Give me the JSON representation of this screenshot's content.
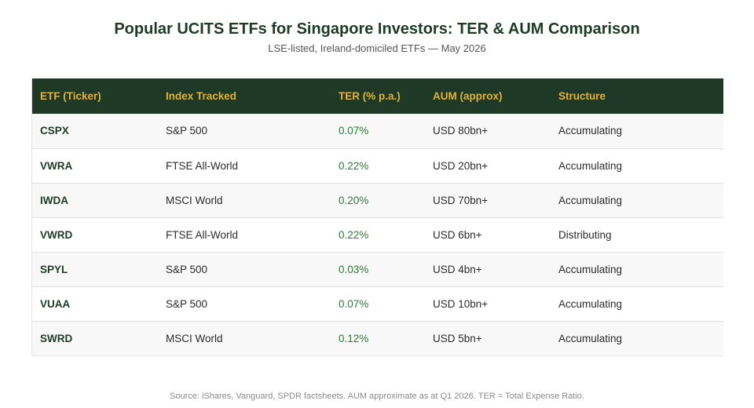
{
  "chart_data": {
    "type": "table",
    "title": "Popular UCITS ETFs for Singapore Investors: TER & AUM Comparison",
    "subtitle": "LSE-listed, Ireland-domiciled ETFs — May 2026",
    "columns": [
      "ETF (Ticker)",
      "Index Tracked",
      "TER (% p.a.)",
      "AUM (approx)",
      "Structure"
    ],
    "rows": [
      {
        "ticker": "CSPX",
        "index": "S&P 500",
        "ter": "0.07%",
        "aum": "USD 80bn+",
        "structure": "Accumulating"
      },
      {
        "ticker": "VWRA",
        "index": "FTSE All-World",
        "ter": "0.22%",
        "aum": "USD 20bn+",
        "structure": "Accumulating"
      },
      {
        "ticker": "IWDA",
        "index": "MSCI World",
        "ter": "0.20%",
        "aum": "USD 70bn+",
        "structure": "Accumulating"
      },
      {
        "ticker": "VWRD",
        "index": "FTSE All-World",
        "ter": "0.22%",
        "aum": "USD 6bn+",
        "structure": "Distributing"
      },
      {
        "ticker": "SPYL",
        "index": "S&P 500",
        "ter": "0.03%",
        "aum": "USD 4bn+",
        "structure": "Accumulating"
      },
      {
        "ticker": "VUAA",
        "index": "S&P 500",
        "ter": "0.07%",
        "aum": "USD 10bn+",
        "structure": "Accumulating"
      },
      {
        "ticker": "SWRD",
        "index": "MSCI World",
        "ter": "0.12%",
        "aum": "USD 5bn+",
        "structure": "Accumulating"
      }
    ],
    "source": "Source: iShares, Vanguard, SPDR factsheets. AUM approximate as at Q1 2026. TER = Total Expense Ratio."
  },
  "colors": {
    "header_background": "#1e3a26",
    "header_text": "#e2b236",
    "ticker_text": "#1e3a26",
    "ter_text": "#2a7a38",
    "row_alt_background": "#f8f8f8"
  }
}
